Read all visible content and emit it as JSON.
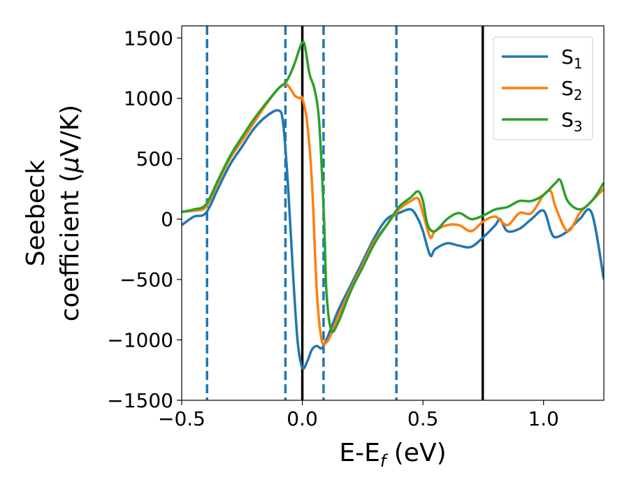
{
  "chart_data": {
    "type": "line",
    "xlabel_parts": [
      "E-E",
      "f",
      " (eV)"
    ],
    "ylabel_line1": "Seebeck",
    "ylabel_line2_parts": [
      "coefficient  (",
      "μ",
      "V/K)"
    ],
    "xlim": [
      -0.5,
      1.25
    ],
    "ylim": [
      -1500,
      1600
    ],
    "xticks": [
      -0.5,
      0.0,
      0.5,
      1.0
    ],
    "xtick_labels": [
      "−0.5",
      "0.0",
      "0.5",
      "1.0"
    ],
    "yticks": [
      -1500,
      -1000,
      -500,
      0,
      500,
      1000,
      1500
    ],
    "ytick_labels": [
      "−1500",
      "−1000",
      "−500",
      "0",
      "500",
      "1000",
      "1500"
    ],
    "legend_placement": "top-right",
    "grid": false,
    "vlines_dashed": {
      "color": "#1f77b4",
      "x": [
        -0.395,
        -0.07,
        0.088,
        0.39
      ]
    },
    "vlines_solid": {
      "color": "#000000",
      "x": [
        0.0,
        0.748
      ]
    },
    "series": [
      {
        "name": "S",
        "subscript": "1",
        "color": "#1f77b4",
        "x": [
          -0.5,
          -0.45,
          -0.4,
          -0.35,
          -0.3,
          -0.25,
          -0.2,
          -0.15,
          -0.1,
          -0.08,
          -0.06,
          -0.04,
          -0.02,
          0.0,
          0.02,
          0.04,
          0.06,
          0.08,
          0.1,
          0.12,
          0.15,
          0.2,
          0.25,
          0.3,
          0.35,
          0.4,
          0.45,
          0.48,
          0.5,
          0.53,
          0.55,
          0.6,
          0.65,
          0.7,
          0.75,
          0.8,
          0.82,
          0.85,
          0.9,
          0.95,
          1.0,
          1.03,
          1.05,
          1.1,
          1.15,
          1.2,
          1.25
        ],
        "y": [
          -50,
          20,
          50,
          250,
          450,
          600,
          750,
          850,
          900,
          800,
          300,
          -400,
          -1000,
          -1230,
          -1180,
          -1080,
          -1050,
          -1070,
          -1000,
          -900,
          -750,
          -550,
          -350,
          -150,
          0,
          50,
          80,
          0,
          -100,
          -300,
          -250,
          -200,
          -220,
          -230,
          -150,
          -50,
          0,
          -100,
          -80,
          0,
          70,
          -100,
          -150,
          -100,
          0,
          50,
          -500
        ]
      },
      {
        "name": "S",
        "subscript": "2",
        "color": "#ff7f0e",
        "x": [
          -0.5,
          -0.45,
          -0.4,
          -0.35,
          -0.3,
          -0.25,
          -0.2,
          -0.15,
          -0.1,
          -0.07,
          -0.05,
          -0.03,
          -0.01,
          0.0,
          0.02,
          0.04,
          0.06,
          0.08,
          0.1,
          0.12,
          0.15,
          0.2,
          0.25,
          0.3,
          0.35,
          0.4,
          0.45,
          0.48,
          0.5,
          0.53,
          0.55,
          0.6,
          0.65,
          0.7,
          0.75,
          0.8,
          0.85,
          0.9,
          0.95,
          1.0,
          1.03,
          1.05,
          1.1,
          1.15,
          1.2,
          1.25
        ],
        "y": [
          60,
          70,
          100,
          300,
          500,
          650,
          800,
          950,
          1080,
          1120,
          1080,
          1020,
          1000,
          1000,
          800,
          300,
          -600,
          -1000,
          -1020,
          -950,
          -800,
          -580,
          -380,
          -180,
          -50,
          80,
          150,
          170,
          50,
          -150,
          -100,
          -50,
          -50,
          -100,
          -20,
          20,
          -50,
          50,
          50,
          200,
          230,
          100,
          -100,
          50,
          150,
          250
        ]
      },
      {
        "name": "S",
        "subscript": "3",
        "color": "#2ca02c",
        "x": [
          -0.5,
          -0.45,
          -0.4,
          -0.35,
          -0.3,
          -0.25,
          -0.2,
          -0.15,
          -0.1,
          -0.07,
          -0.05,
          -0.03,
          -0.01,
          0.0,
          0.01,
          0.03,
          0.05,
          0.07,
          0.09,
          0.1,
          0.12,
          0.15,
          0.2,
          0.25,
          0.3,
          0.35,
          0.4,
          0.45,
          0.48,
          0.5,
          0.52,
          0.55,
          0.6,
          0.65,
          0.7,
          0.75,
          0.8,
          0.85,
          0.9,
          0.95,
          1.0,
          1.05,
          1.07,
          1.1,
          1.15,
          1.2,
          1.25
        ],
        "y": [
          60,
          80,
          120,
          320,
          520,
          680,
          830,
          960,
          1080,
          1130,
          1200,
          1300,
          1420,
          1460,
          1440,
          1200,
          1080,
          800,
          0,
          -600,
          -920,
          -850,
          -600,
          -400,
          -200,
          -50,
          100,
          180,
          230,
          150,
          -50,
          -100,
          0,
          50,
          0,
          30,
          80,
          100,
          150,
          150,
          200,
          300,
          320,
          150,
          80,
          150,
          300
        ]
      }
    ]
  }
}
